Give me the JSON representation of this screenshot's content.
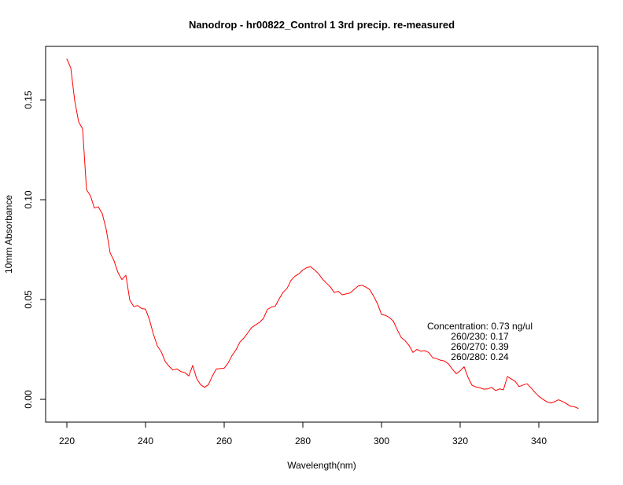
{
  "colors": {
    "line": "#ff0000",
    "axis": "#000000",
    "background": "#ffffff"
  },
  "chart_data": {
    "type": "line",
    "title": "Nanodrop - hr00822_Control 1 3rd precip. re-measured",
    "xlabel": "Wavelength(nm)",
    "ylabel": "10mm Absorbance",
    "x_ticks": [
      220,
      240,
      260,
      280,
      300,
      320,
      340
    ],
    "y_ticks": [
      {
        "value": 0.0,
        "label": "0.00"
      },
      {
        "value": 0.05,
        "label": "0.05"
      },
      {
        "value": 0.1,
        "label": "0.10"
      },
      {
        "value": 0.15,
        "label": "0.15"
      }
    ],
    "xlim": [
      214.6,
      355.0
    ],
    "ylim": [
      -0.0114,
      0.1768
    ],
    "grid": false,
    "legend": null,
    "line_color": "#ff0000",
    "annotations": [
      "Concentration: 0.73 ng/ul",
      "260/230: 0.17",
      "260/270: 0.39",
      "260/280: 0.24"
    ],
    "series": [
      {
        "name": "10mm Absorbance",
        "x": [
          220,
          221,
          222,
          223,
          224,
          225,
          226,
          227,
          228,
          229,
          230,
          231,
          232,
          233,
          234,
          235,
          236,
          237,
          238,
          239,
          240,
          241,
          242,
          243,
          244,
          245,
          246,
          247,
          248,
          249,
          250,
          251,
          252,
          253,
          254,
          255,
          256,
          257,
          258,
          259,
          260,
          261,
          262,
          263,
          264,
          265,
          266,
          267,
          268,
          269,
          270,
          271,
          272,
          273,
          274,
          275,
          276,
          277,
          278,
          279,
          280,
          281,
          282,
          283,
          284,
          285,
          286,
          287,
          288,
          289,
          290,
          291,
          292,
          293,
          294,
          295,
          296,
          297,
          298,
          299,
          300,
          301,
          302,
          303,
          304,
          305,
          306,
          307,
          308,
          309,
          310,
          311,
          312,
          313,
          314,
          315,
          316,
          317,
          318,
          319,
          320,
          321,
          322,
          323,
          324,
          325,
          326,
          327,
          328,
          329,
          330,
          331,
          332,
          333,
          334,
          335,
          336,
          337,
          338,
          339,
          340,
          341,
          342,
          343,
          344,
          345,
          346,
          347,
          348,
          349,
          350
        ],
        "y": [
          0.1705,
          0.166,
          0.1495,
          0.139,
          0.1355,
          0.105,
          0.102,
          0.0958,
          0.0964,
          0.093,
          0.0852,
          0.0734,
          0.0694,
          0.0635,
          0.06,
          0.0622,
          0.0497,
          0.0465,
          0.047,
          0.0455,
          0.0452,
          0.0399,
          0.0327,
          0.0268,
          0.0238,
          0.019,
          0.0165,
          0.0147,
          0.0152,
          0.0139,
          0.0134,
          0.0117,
          0.017,
          0.0104,
          0.0074,
          0.006,
          0.0074,
          0.0117,
          0.0152,
          0.0154,
          0.0156,
          0.0182,
          0.022,
          0.0248,
          0.0287,
          0.0307,
          0.0333,
          0.036,
          0.0373,
          0.0386,
          0.0406,
          0.0451,
          0.0462,
          0.0467,
          0.0504,
          0.0537,
          0.0556,
          0.0596,
          0.0617,
          0.0629,
          0.0648,
          0.066,
          0.0664,
          0.0648,
          0.0629,
          0.0602,
          0.0582,
          0.0563,
          0.0535,
          0.0541,
          0.0524,
          0.0528,
          0.0533,
          0.055,
          0.0567,
          0.0572,
          0.0563,
          0.055,
          0.0517,
          0.0478,
          0.0425,
          0.0421,
          0.041,
          0.0392,
          0.0349,
          0.031,
          0.0294,
          0.027,
          0.0235,
          0.025,
          0.0241,
          0.0244,
          0.0235,
          0.0209,
          0.0204,
          0.0196,
          0.0192,
          0.0178,
          0.0152,
          0.0128,
          0.0143,
          0.0163,
          0.011,
          0.0071,
          0.0062,
          0.0058,
          0.0051,
          0.0052,
          0.006,
          0.0044,
          0.0052,
          0.0048,
          0.0114,
          0.0102,
          0.009,
          0.0064,
          0.0072,
          0.0078,
          0.0058,
          0.0035,
          0.0015,
          0.0001,
          -0.0012,
          -0.0018,
          -0.0012,
          -0.0002,
          -0.0011,
          -0.0021,
          -0.0034,
          -0.0037,
          -0.0045
        ]
      }
    ]
  }
}
